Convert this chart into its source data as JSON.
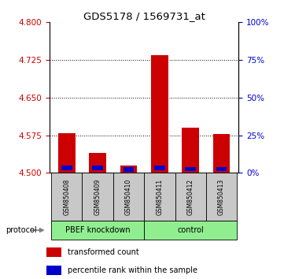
{
  "title": "GDS5178 / 1569731_at",
  "samples": [
    "GSM850408",
    "GSM850409",
    "GSM850410",
    "GSM850411",
    "GSM850412",
    "GSM850413"
  ],
  "red_values": [
    4.58,
    4.54,
    4.515,
    4.735,
    4.59,
    4.578
  ],
  "blue_values": [
    4.51,
    4.51,
    4.507,
    4.51,
    4.508,
    4.508
  ],
  "ymin": 4.5,
  "ymax": 4.8,
  "yticks_red": [
    4.5,
    4.575,
    4.65,
    4.725,
    4.8
  ],
  "yticks_blue_pct": [
    0,
    25,
    50,
    75,
    100
  ],
  "red_color": "#CC0000",
  "blue_color": "#0000CC",
  "bar_width": 0.55,
  "blue_bar_width": 0.35,
  "blue_bar_height": 0.009,
  "group_light_green": "#90EE90",
  "group_dark_green": "#32CD32",
  "sample_bg_color": "#C8C8C8",
  "protocol_label": "protocol",
  "legend_red": "transformed count",
  "legend_blue": "percentile rank within the sample"
}
